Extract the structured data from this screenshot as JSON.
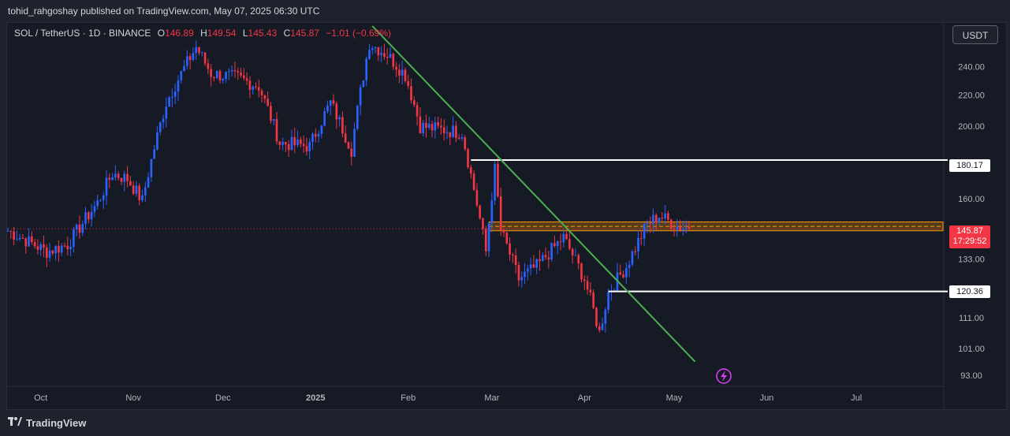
{
  "header": {
    "publisher": "tohid_rahgoshay published on TradingView.com, May 07, 2025 06:30 UTC"
  },
  "legend": {
    "symbol": "SOL / TetherUS · 1D · BINANCE",
    "o_label": "O",
    "o_value": "146.89",
    "h_label": "H",
    "h_value": "149.54",
    "l_label": "L",
    "l_value": "145.43",
    "c_label": "C",
    "c_value": "145.87",
    "change": "−1.01 (−0.69%)"
  },
  "toolbar": {
    "currency_button": "USDT"
  },
  "footer": {
    "brand": "TradingView"
  },
  "price_labels": {
    "resistance": "180.17",
    "current_price": "145.87",
    "countdown": "17:29:52",
    "support": "120.36"
  },
  "colors": {
    "up": "#2962ff",
    "down": "#f23645",
    "trendline": "#4caf50",
    "zone": "#ff9800",
    "level_line": "#ffffff",
    "flash_icon": "#e040fb"
  },
  "chart_data": {
    "type": "candlestick",
    "symbol": "SOL / TetherUS",
    "interval": "1D",
    "exchange": "BINANCE",
    "y_ticks": [
      93.0,
      101.0,
      111.0,
      133.0,
      160.0,
      200.0,
      220.0,
      240.0
    ],
    "ylim": [
      91,
      274
    ],
    "y_scale": "log",
    "x_ticks": [
      "Oct",
      "Nov",
      "Dec",
      "2025",
      "Feb",
      "Mar",
      "Apr",
      "May",
      "Jun",
      "Jul"
    ],
    "x_tick_dates": [
      "2024-10-01",
      "2024-11-01",
      "2024-12-01",
      "2025-01-01",
      "2025-02-01",
      "2025-03-01",
      "2025-04-01",
      "2025-05-01",
      "2025-06-01",
      "2025-07-01"
    ],
    "xlim": [
      "2024-09-20",
      "2025-07-30"
    ],
    "key_points": [
      {
        "date": "2024-09-20",
        "price": 145
      },
      {
        "date": "2024-10-03",
        "price": 136
      },
      {
        "date": "2024-10-10",
        "price": 139
      },
      {
        "date": "2024-10-20",
        "price": 158
      },
      {
        "date": "2024-10-25",
        "price": 173
      },
      {
        "date": "2024-10-30",
        "price": 170
      },
      {
        "date": "2024-11-04",
        "price": 159
      },
      {
        "date": "2024-11-12",
        "price": 215
      },
      {
        "date": "2024-11-22",
        "price": 255
      },
      {
        "date": "2024-11-27",
        "price": 235
      },
      {
        "date": "2024-12-06",
        "price": 232
      },
      {
        "date": "2024-12-13",
        "price": 226
      },
      {
        "date": "2024-12-20",
        "price": 190
      },
      {
        "date": "2024-12-30",
        "price": 188
      },
      {
        "date": "2025-01-06",
        "price": 215
      },
      {
        "date": "2025-01-13",
        "price": 186
      },
      {
        "date": "2025-01-19",
        "price": 258
      },
      {
        "date": "2025-01-25",
        "price": 249
      },
      {
        "date": "2025-01-31",
        "price": 234
      },
      {
        "date": "2025-02-05",
        "price": 200
      },
      {
        "date": "2025-02-12",
        "price": 198
      },
      {
        "date": "2025-02-19",
        "price": 196
      },
      {
        "date": "2025-02-22",
        "price": 172
      },
      {
        "date": "2025-02-27",
        "price": 136
      },
      {
        "date": "2025-03-02",
        "price": 175
      },
      {
        "date": "2025-03-04",
        "price": 145
      },
      {
        "date": "2025-03-10",
        "price": 125
      },
      {
        "date": "2025-03-16",
        "price": 130
      },
      {
        "date": "2025-03-25",
        "price": 142
      },
      {
        "date": "2025-04-01",
        "price": 125
      },
      {
        "date": "2025-04-06",
        "price": 106
      },
      {
        "date": "2025-04-09",
        "price": 120
      },
      {
        "date": "2025-04-15",
        "price": 130
      },
      {
        "date": "2025-04-22",
        "price": 148
      },
      {
        "date": "2025-04-26",
        "price": 152
      },
      {
        "date": "2025-05-02",
        "price": 147
      },
      {
        "date": "2025-05-06",
        "price": 145.87
      }
    ],
    "last": {
      "open": 146.89,
      "high": 149.54,
      "low": 145.43,
      "close": 145.87
    },
    "annotations": {
      "resistance": {
        "price": 180.17,
        "from": "2025-02-22"
      },
      "support": {
        "price": 120.36,
        "from": "2025-04-09"
      },
      "zone": {
        "low": 145.0,
        "high": 149.0,
        "from": "2025-02-28"
      },
      "trendline": {
        "from": {
          "date": "2025-01-20",
          "price": 272
        },
        "to": {
          "date": "2025-05-08",
          "price": 97
        }
      }
    }
  }
}
